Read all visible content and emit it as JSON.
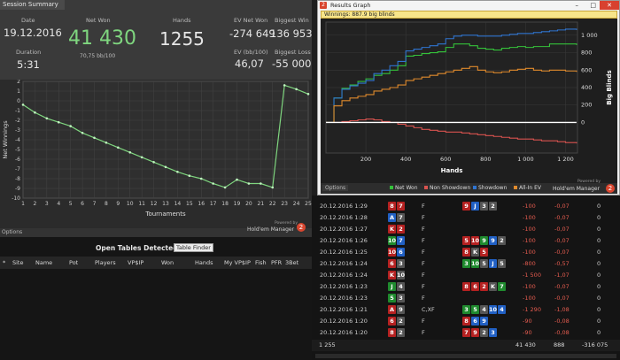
{
  "summary": {
    "tab_label": "Session Summary",
    "date_label": "Date",
    "date_value": "19.12.2016",
    "duration_label": "Duration",
    "duration_value": "5:31",
    "net_won_label": "Net Won",
    "net_won_value": "41 430",
    "bb_per_100": "70,75 bb/100",
    "hands_label": "Hands",
    "hands_value": "1255",
    "ev_net_won_label": "EV Net Won",
    "ev_net_won_value": "-274 649",
    "biggest_win_label": "Biggest Win",
    "biggest_win_value": "136 953",
    "ev_bb100_label": "EV (bb/100)",
    "ev_bb100_value": "46,07",
    "biggest_loss_label": "Biggest Loss",
    "biggest_loss_value": "-55 000",
    "color_green": "#7fd67f"
  },
  "net_winnings_chart": {
    "ylabel": "Net Winnings",
    "xlabel": "Tournaments",
    "powered_by": "Powered by",
    "brand": "Hold'em Manager"
  },
  "chart_data": [
    {
      "type": "line",
      "xlabel": "Tournaments",
      "ylabel": "Net Winnings",
      "x": [
        1,
        2,
        3,
        4,
        5,
        6,
        7,
        8,
        9,
        10,
        11,
        12,
        13,
        14,
        15,
        16,
        17,
        18,
        19,
        20,
        21,
        22,
        23,
        24,
        25
      ],
      "y_ticks": [
        "-10",
        "-9",
        "-8",
        "-7",
        "-6",
        "-5",
        "-4",
        "-3",
        "-2",
        "-1",
        "0",
        "1",
        "2"
      ],
      "series": [
        {
          "values": [
            -0.4,
            -1.2,
            -1.8,
            -2.2,
            -2.6,
            -3.3,
            -3.8,
            -4.3,
            -4.8,
            -5.3,
            -5.8,
            -6.3,
            -6.8,
            -7.3,
            -7.7,
            -8.0,
            -8.5,
            -8.9,
            -8.1,
            -8.5,
            -8.5,
            -8.9,
            1.6,
            1.2,
            0.7
          ]
        }
      ],
      "ylim": [
        -10,
        2
      ],
      "color": "#7fd67f",
      "grid": true
    },
    {
      "type": "line",
      "title": "Winnings: 887.9 big blinds",
      "xlabel": "Hands",
      "ylabel": "Big Blinds",
      "x_ticks": [
        "200",
        "400",
        "600",
        "800",
        "1 000",
        "1 200"
      ],
      "y_ticks": [
        "0",
        "200",
        "400",
        "600",
        "800",
        "1 000"
      ],
      "xlim": [
        0,
        1260
      ],
      "ylim": [
        -350,
        1150
      ],
      "series": [
        {
          "name": "Net Won",
          "color": "#34c13a",
          "x": [
            0,
            40,
            80,
            120,
            160,
            200,
            240,
            280,
            320,
            360,
            400,
            440,
            480,
            520,
            560,
            600,
            640,
            680,
            720,
            760,
            800,
            840,
            880,
            920,
            960,
            1000,
            1040,
            1080,
            1120,
            1160,
            1200,
            1255
          ],
          "values": [
            0,
            280,
            390,
            430,
            470,
            500,
            540,
            560,
            600,
            650,
            760,
            770,
            790,
            800,
            810,
            860,
            900,
            900,
            880,
            850,
            840,
            830,
            850,
            860,
            870,
            860,
            870,
            870,
            900,
            900,
            900,
            888
          ]
        },
        {
          "name": "Non Showdown",
          "color": "#d9534f",
          "x": [
            0,
            40,
            80,
            120,
            160,
            200,
            240,
            280,
            320,
            360,
            400,
            440,
            480,
            520,
            560,
            600,
            640,
            680,
            720,
            760,
            800,
            840,
            880,
            920,
            960,
            1000,
            1040,
            1080,
            1120,
            1160,
            1200,
            1255
          ],
          "values": [
            0,
            0,
            10,
            20,
            30,
            40,
            30,
            10,
            0,
            -20,
            -40,
            -60,
            -80,
            -90,
            -100,
            -110,
            -110,
            -120,
            -130,
            -140,
            -150,
            -160,
            -170,
            -180,
            -190,
            -190,
            -200,
            -210,
            -210,
            -220,
            -230,
            -240
          ]
        },
        {
          "name": "Showdown",
          "color": "#2f74d0",
          "x": [
            0,
            40,
            80,
            120,
            160,
            200,
            240,
            280,
            320,
            360,
            400,
            440,
            480,
            520,
            560,
            600,
            640,
            680,
            720,
            760,
            800,
            840,
            880,
            920,
            960,
            1000,
            1040,
            1080,
            1120,
            1160,
            1200,
            1255
          ],
          "values": [
            0,
            280,
            380,
            420,
            450,
            480,
            560,
            600,
            650,
            700,
            820,
            840,
            860,
            880,
            900,
            960,
            990,
            1000,
            1000,
            990,
            990,
            990,
            1000,
            1010,
            1020,
            1020,
            1030,
            1040,
            1050,
            1060,
            1070,
            1060
          ]
        },
        {
          "name": "All-In EV",
          "color": "#e08a2c",
          "x": [
            0,
            40,
            80,
            120,
            160,
            200,
            240,
            280,
            320,
            360,
            400,
            440,
            480,
            520,
            560,
            600,
            640,
            680,
            720,
            760,
            800,
            840,
            880,
            920,
            960,
            1000,
            1040,
            1080,
            1120,
            1160,
            1200,
            1255
          ],
          "values": [
            0,
            190,
            250,
            280,
            300,
            320,
            360,
            380,
            400,
            430,
            480,
            500,
            520,
            540,
            560,
            580,
            600,
            620,
            640,
            600,
            580,
            570,
            580,
            600,
            610,
            620,
            600,
            590,
            600,
            600,
            590,
            580
          ]
        },
        {
          "name": "Baseline",
          "color": "#ffffff",
          "x": [
            0,
            1255
          ],
          "values": [
            0,
            0
          ]
        }
      ]
    }
  ],
  "options_label": "Options",
  "open_tables": {
    "title": "Open Tables Detected",
    "finder_button": "Table Finder",
    "columns": [
      "*",
      "Site",
      "Name",
      "Pot",
      "Players",
      "VP$IP",
      "Won",
      "Hands",
      "My VP$IP",
      "Fish",
      "PFR",
      "3Bet"
    ]
  },
  "results_graph": {
    "window_title": "Results Graph",
    "info_prefix": "Winnings:",
    "info_value": "887.9 big blinds",
    "legend": [
      "Net Won",
      "Non Showdown",
      "Showdown",
      "All-In EV"
    ],
    "powered_by": "Powered by",
    "brand": "Hold'em Manager"
  },
  "hand_rows": [
    {
      "date": "20.12.2016 1:29",
      "c1": "8",
      "c1c": "r",
      "c2": "7",
      "c2c": "r",
      "action": "F",
      "board": [
        [
          "9",
          "r"
        ],
        [
          "J",
          "b"
        ],
        [
          "3",
          "k"
        ],
        [
          "2",
          "k"
        ]
      ],
      "won": "-100",
      "bb": "-0,07",
      "x": "0"
    },
    {
      "date": "20.12.2016 1:28",
      "c1": "A",
      "c1c": "b",
      "c2": "7",
      "c2c": "k",
      "action": "F",
      "board": [],
      "won": "-100",
      "bb": "-0,07",
      "x": "0"
    },
    {
      "date": "20.12.2016 1:27",
      "c1": "K",
      "c1c": "r",
      "c2": "2",
      "c2c": "r",
      "action": "F",
      "board": [],
      "won": "-100",
      "bb": "-0,07",
      "x": "0"
    },
    {
      "date": "20.12.2016 1:26",
      "c1": "10",
      "c1c": "g",
      "c2": "7",
      "c2c": "b",
      "action": "F",
      "board": [
        [
          "5",
          "r"
        ],
        [
          "10",
          "r"
        ],
        [
          "9",
          "g"
        ],
        [
          "9",
          "b"
        ],
        [
          "2",
          "k"
        ]
      ],
      "won": "-100",
      "bb": "-0,07",
      "x": "0"
    },
    {
      "date": "20.12.2016 1:25",
      "c1": "10",
      "c1c": "r",
      "c2": "6",
      "c2c": "b",
      "action": "F",
      "board": [
        [
          "8",
          "r"
        ],
        [
          "K",
          "k"
        ],
        [
          "5",
          "r"
        ]
      ],
      "won": "-100",
      "bb": "-0,07",
      "x": "0"
    },
    {
      "date": "20.12.2016 1:24",
      "c1": "6",
      "c1c": "r",
      "c2": "3",
      "c2c": "k",
      "action": "F",
      "board": [
        [
          "3",
          "g"
        ],
        [
          "10",
          "g"
        ],
        [
          "5",
          "k"
        ],
        [
          "J",
          "b"
        ],
        [
          "5",
          "k"
        ]
      ],
      "won": "-800",
      "bb": "-0,57",
      "x": "0"
    },
    {
      "date": "20.12.2016 1:24",
      "c1": "K",
      "c1c": "r",
      "c2": "10",
      "c2c": "k",
      "action": "F",
      "board": [],
      "won": "-1 500",
      "bb": "-1,07",
      "x": "0"
    },
    {
      "date": "20.12.2016 1:23",
      "c1": "J",
      "c1c": "g",
      "c2": "4",
      "c2c": "k",
      "action": "F",
      "board": [
        [
          "8",
          "r"
        ],
        [
          "6",
          "r"
        ],
        [
          "2",
          "r"
        ],
        [
          "K",
          "k"
        ],
        [
          "7",
          "g"
        ]
      ],
      "won": "-100",
      "bb": "-0,07",
      "x": "0"
    },
    {
      "date": "20.12.2016 1:23",
      "c1": "5",
      "c1c": "g",
      "c2": "3",
      "c2c": "k",
      "action": "F",
      "board": [],
      "won": "-100",
      "bb": "-0,07",
      "x": "0"
    },
    {
      "date": "20.12.2016 1:21",
      "c1": "A",
      "c1c": "r",
      "c2": "9",
      "c2c": "k",
      "action": "C,XF",
      "board": [
        [
          "3",
          "g"
        ],
        [
          "5",
          "g"
        ],
        [
          "4",
          "k"
        ],
        [
          "10",
          "b"
        ],
        [
          "4",
          "b"
        ]
      ],
      "won": "-1 290",
      "bb": "-1,08",
      "x": "0"
    },
    {
      "date": "20.12.2016 1:20",
      "c1": "6",
      "c1c": "r",
      "c2": "2",
      "c2c": "k",
      "action": "F",
      "board": [
        [
          "8",
          "r"
        ],
        [
          "6",
          "b"
        ],
        [
          "9",
          "b"
        ]
      ],
      "won": "-90",
      "bb": "-0,08",
      "x": "0"
    },
    {
      "date": "20.12.2016 1:20",
      "c1": "8",
      "c1c": "r",
      "c2": "2",
      "c2c": "k",
      "action": "F",
      "board": [
        [
          "7",
          "r"
        ],
        [
          "9",
          "r"
        ],
        [
          "2",
          "k"
        ],
        [
          "3",
          "b"
        ]
      ],
      "won": "-90",
      "bb": "-0,08",
      "x": "0"
    }
  ],
  "totals": {
    "hands": "1 255",
    "won": "41 430",
    "bb": "888",
    "ev": "-316 075"
  }
}
